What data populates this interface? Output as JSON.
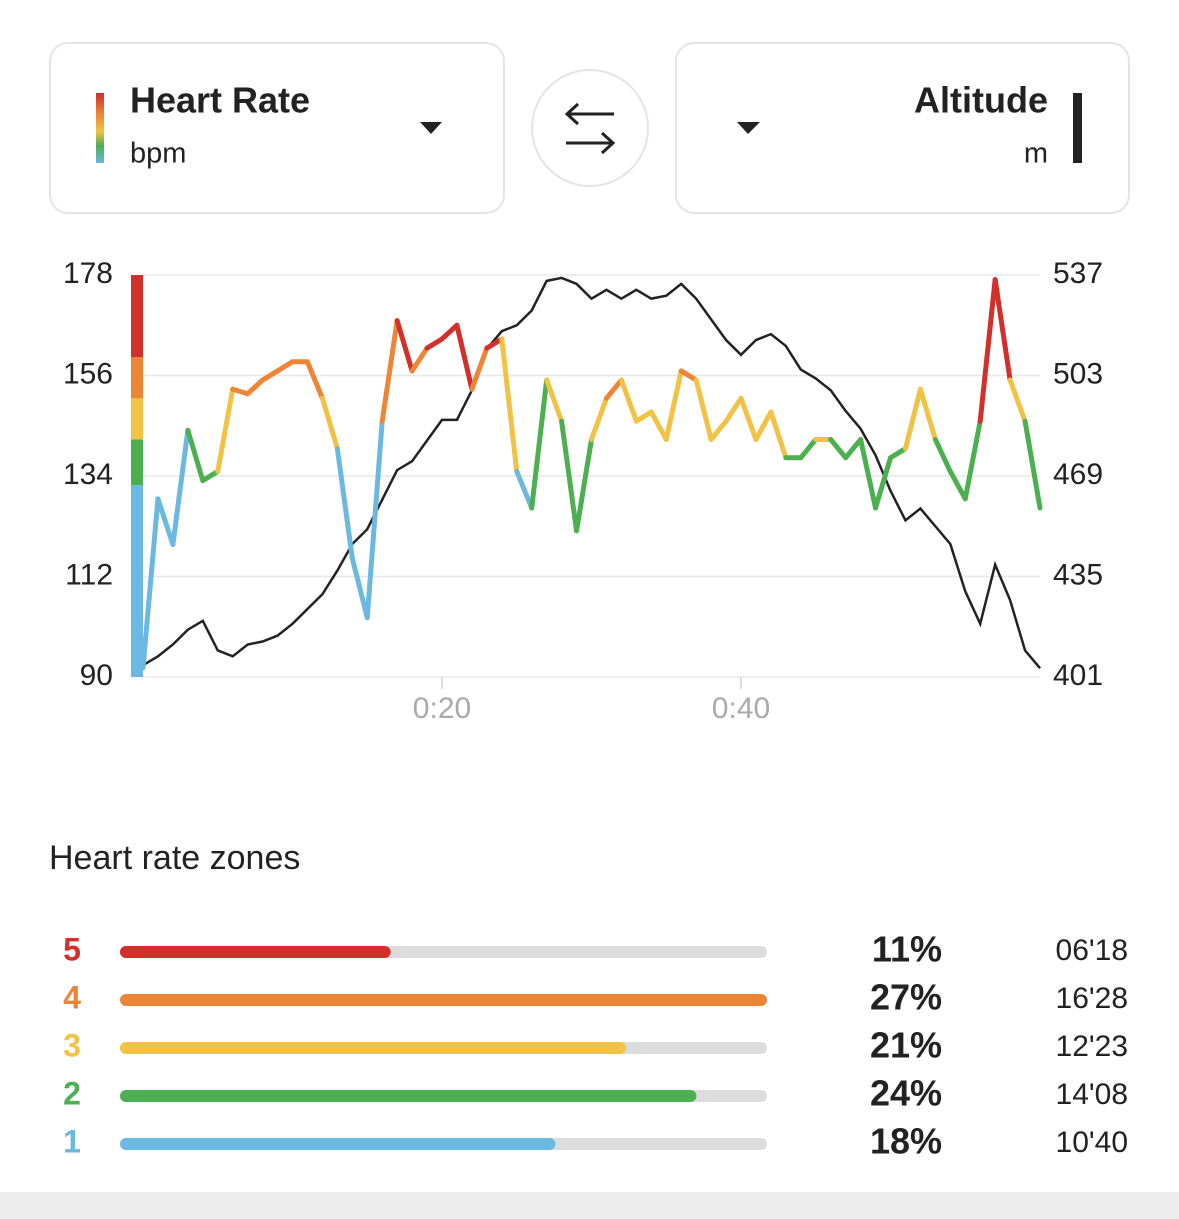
{
  "selectors": {
    "left": {
      "title": "Heart Rate",
      "unit": "bpm"
    },
    "right": {
      "title": "Altitude",
      "unit": "m"
    }
  },
  "chart_data": {
    "type": "line",
    "x": [
      0,
      1,
      2,
      3,
      4,
      5,
      6,
      7,
      8,
      9,
      10,
      11,
      12,
      13,
      14,
      15,
      16,
      17,
      18,
      19,
      20,
      21,
      22,
      23,
      24,
      25,
      26,
      27,
      28,
      29,
      30,
      31,
      32,
      33,
      34,
      35,
      36,
      37,
      38,
      39,
      40,
      41,
      42,
      43,
      44,
      45,
      46,
      47,
      48,
      49,
      50,
      51,
      52,
      53,
      54,
      55,
      56,
      57,
      58,
      59,
      60
    ],
    "series": [
      {
        "values": [
          92,
          129,
          119,
          144,
          133,
          135,
          153,
          152,
          155,
          157,
          159,
          159,
          151,
          140,
          116,
          103,
          146,
          168,
          157,
          162,
          164,
          167,
          153,
          162,
          164,
          135,
          127,
          155,
          146,
          122,
          142,
          151,
          155,
          146,
          148,
          142,
          157,
          155,
          142,
          146,
          151,
          142,
          148,
          138,
          138,
          142,
          142,
          138,
          142,
          127,
          138,
          140,
          153,
          142,
          135,
          129,
          146,
          177,
          155,
          146,
          127
        ]
      },
      {
        "axis": "y2",
        "color": "#222222",
        "values": [
          405,
          408,
          412,
          417,
          420,
          410,
          408,
          412,
          413,
          415,
          419,
          424,
          429,
          437,
          446,
          451,
          461,
          471,
          474,
          481,
          488,
          488,
          498,
          512,
          518,
          520,
          525,
          535,
          536,
          534,
          529,
          532,
          529,
          532,
          529,
          530,
          534,
          529,
          522,
          515,
          510,
          515,
          517,
          513,
          505,
          502,
          498,
          491,
          485,
          476,
          464,
          454,
          458,
          452,
          446,
          430,
          419,
          439,
          427,
          410,
          404
        ]
      }
    ],
    "zone_bounds": [
      132,
      142,
      151,
      160
    ],
    "zone_colors": [
      "#6bb8e0",
      "#4caf50",
      "#f2c244",
      "#ec8536",
      "#d2302a"
    ],
    "xlim": [
      0,
      60
    ],
    "xticks": [
      {
        "value": 20,
        "label": "0:20"
      },
      {
        "value": 40,
        "label": "0:40"
      }
    ],
    "ylim": [
      90,
      178
    ],
    "yticks": [
      90,
      112,
      134,
      156,
      178
    ],
    "y2lim": [
      401,
      537
    ],
    "y2ticks": [
      401,
      435,
      469,
      503,
      537
    ],
    "grid": true
  },
  "zones": {
    "title": "Heart rate zones",
    "rows": [
      {
        "zone": "5",
        "color": "#d2302a",
        "percent": 11,
        "percent_label": "11%",
        "time": "06'18"
      },
      {
        "zone": "4",
        "color": "#ec8536",
        "percent": 27,
        "percent_label": "27%",
        "time": "16'28"
      },
      {
        "zone": "3",
        "color": "#f2c244",
        "percent": 21,
        "percent_label": "21%",
        "time": "12'23"
      },
      {
        "zone": "2",
        "color": "#4caf50",
        "percent": 24,
        "percent_label": "24%",
        "time": "14'08"
      },
      {
        "zone": "1",
        "color": "#6bb8e0",
        "percent": 18,
        "percent_label": "18%",
        "time": "10'40"
      }
    ]
  }
}
